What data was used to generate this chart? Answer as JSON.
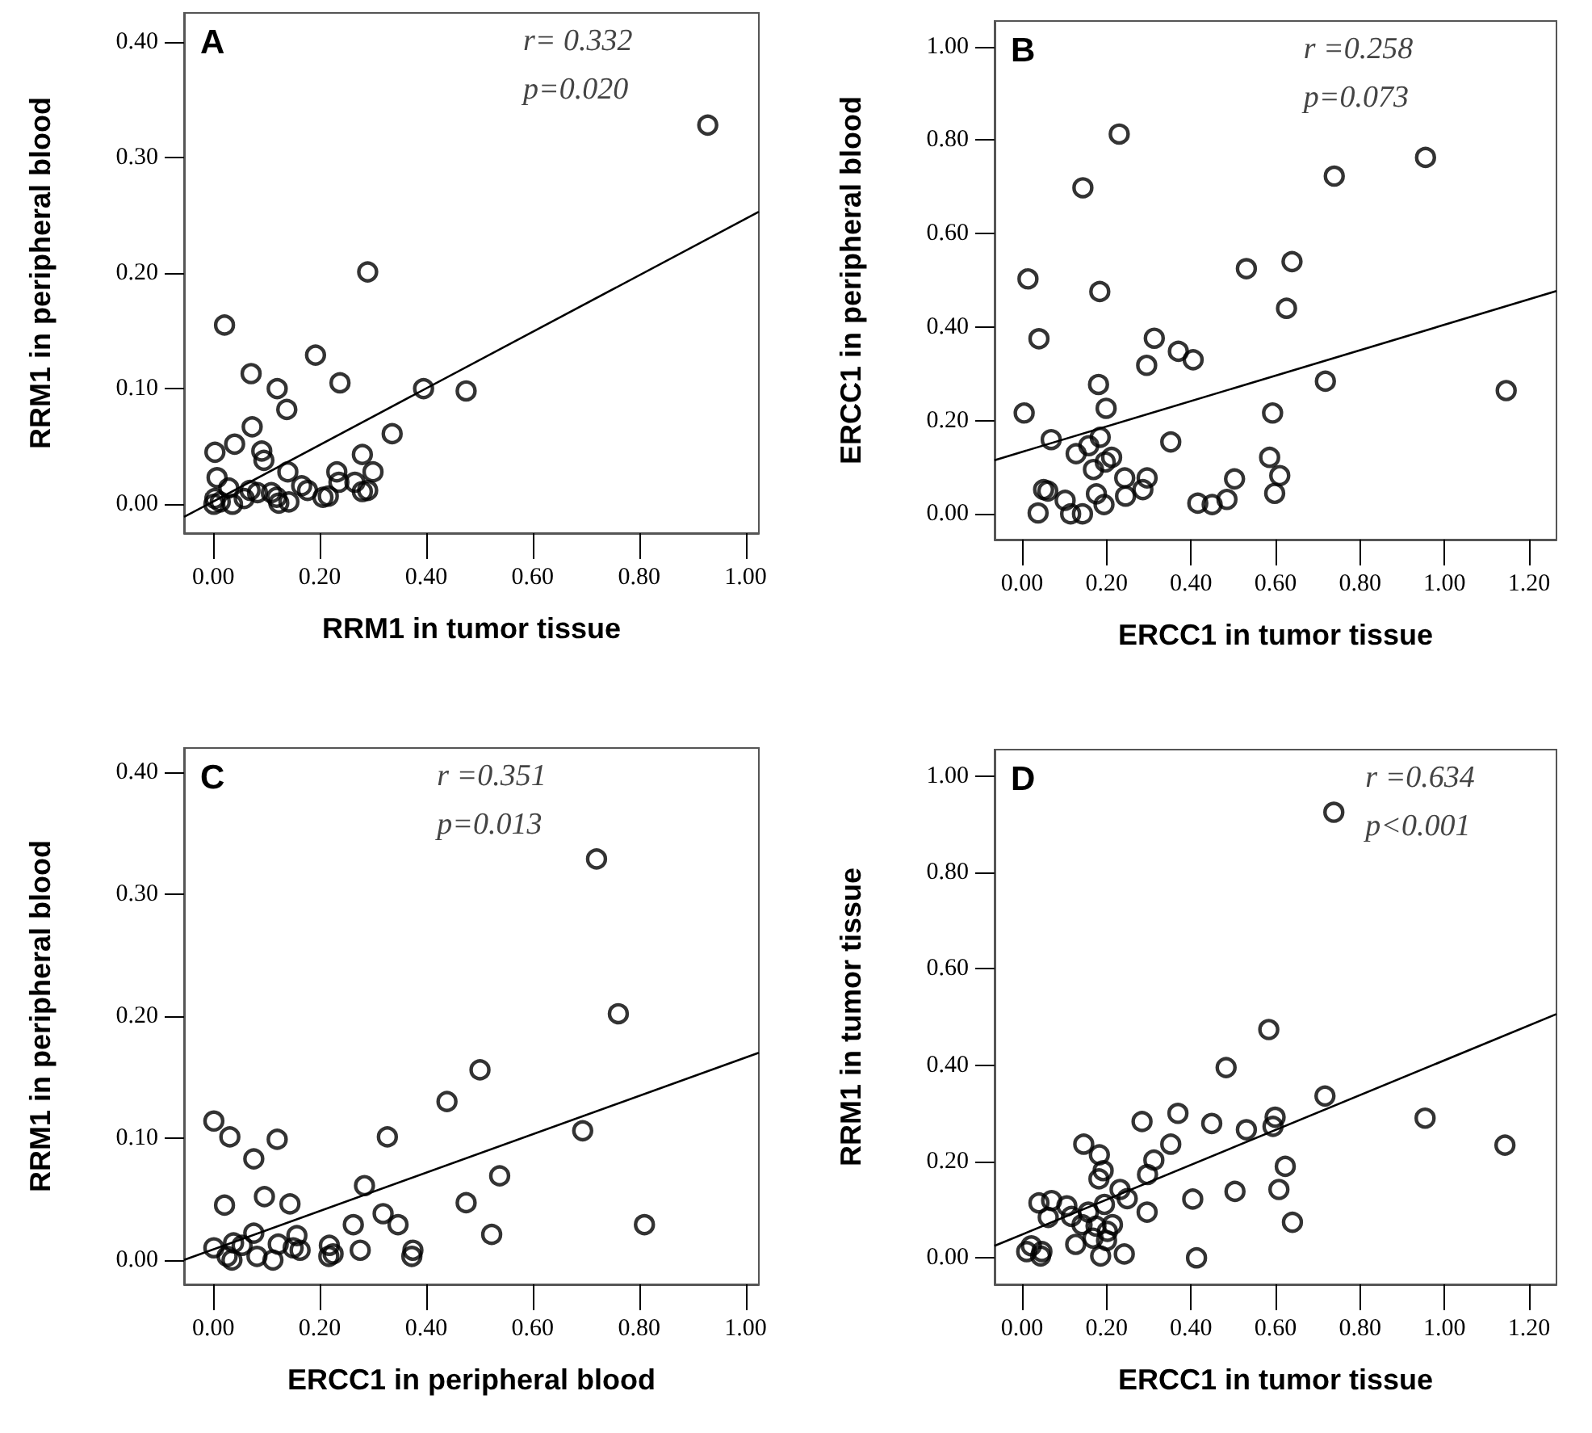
{
  "chart_data": [
    {
      "type": "scatter",
      "title": "A",
      "xlabel": "RRM1 in tumor tissue",
      "ylabel": "RRM1 in peripheral blood",
      "annotations": [
        "r= 0.332",
        "p=0.020"
      ],
      "marker": "circle",
      "grid": false,
      "xlim": [
        -0.055,
        1.025
      ],
      "ylim": [
        -0.025,
        0.425
      ],
      "xticks": [
        {
          "value": 0,
          "label": "0.00"
        },
        {
          "value": 0.2,
          "label": "0.20"
        },
        {
          "value": 0.4,
          "label": "0.40"
        },
        {
          "value": 0.6,
          "label": "0.60"
        },
        {
          "value": 0.8,
          "label": "0.80"
        },
        {
          "value": 1,
          "label": "1.00"
        }
      ],
      "yticks": [
        {
          "value": 0,
          "label": "0.00"
        },
        {
          "value": 0.1,
          "label": "0.10"
        },
        {
          "value": 0.2,
          "label": "0.20"
        },
        {
          "value": 0.3,
          "label": "0.30"
        },
        {
          "value": 0.4,
          "label": "0.40"
        }
      ],
      "series": [
        {
          "color": "#000000",
          "x": [
            0.929,
            0.29,
            0.021,
            0.192,
            0.071,
            0.12,
            0.238,
            0.138,
            0.395,
            0.475,
            0.073,
            0.336,
            0.04,
            0.003,
            0.091,
            0.095,
            0.28,
            0.14,
            0.232,
            0.3,
            0.007,
            0.236,
            0.266,
            0.166,
            0.177,
            0.28,
            0.29,
            0.029,
            0.069,
            0.083,
            0.109,
            0.119,
            0.206,
            0.216,
            0.003,
            0.013,
            0.036,
            0.058,
            0.123,
            0.142,
            0.001
          ],
          "values": [
            0.328,
            0.201,
            0.155,
            0.129,
            0.113,
            0.1,
            0.105,
            0.082,
            0.1,
            0.098,
            0.067,
            0.061,
            0.052,
            0.045,
            0.046,
            0.038,
            0.043,
            0.028,
            0.028,
            0.028,
            0.023,
            0.019,
            0.019,
            0.016,
            0.012,
            0.011,
            0.012,
            0.014,
            0.012,
            0.01,
            0.01,
            0.006,
            0.006,
            0.007,
            0.005,
            0.002,
            0,
            0.005,
            0.001,
            0.002,
            0
          ]
        },
        {
          "type": "line",
          "marker": "none",
          "color": "#000000",
          "x": [
            -0.055,
            1.025
          ],
          "values": [
            -0.011,
            0.253
          ]
        }
      ]
    },
    {
      "type": "scatter",
      "title": "B",
      "xlabel": "ERCC1 in tumor tissue",
      "ylabel": "ERCC1 in peripheral blood",
      "annotations": [
        "r =0.258",
        "p=0.073"
      ],
      "marker": "circle",
      "grid": false,
      "xlim": [
        -0.065,
        1.265
      ],
      "ylim": [
        -0.055,
        1.055
      ],
      "xticks": [
        {
          "value": 0,
          "label": "0.00"
        },
        {
          "value": 0.2,
          "label": "0.20"
        },
        {
          "value": 0.4,
          "label": "0.40"
        },
        {
          "value": 0.6,
          "label": "0.60"
        },
        {
          "value": 0.8,
          "label": "0.80"
        },
        {
          "value": 1,
          "label": "1.00"
        },
        {
          "value": 1.2,
          "label": "1.20"
        }
      ],
      "yticks": [
        {
          "value": 0,
          "label": "0.00"
        },
        {
          "value": 0.2,
          "label": "0.20"
        },
        {
          "value": 0.4,
          "label": "0.40"
        },
        {
          "value": 0.6,
          "label": "0.60"
        },
        {
          "value": 0.8,
          "label": "0.80"
        },
        {
          "value": 1,
          "label": "1.00"
        }
      ],
      "series": [
        {
          "color": "#000000",
          "x": [
            0.23,
            0.144,
            0.955,
            0.739,
            0.014,
            0.184,
            0.531,
            0.639,
            0.626,
            0.04,
            0.313,
            0.37,
            0.405,
            0.295,
            0.181,
            0.718,
            1.146,
            0.199,
            0.005,
            0.593,
            0.069,
            0.352,
            0.158,
            0.185,
            0.128,
            0.212,
            0.197,
            0.169,
            0.586,
            0.61,
            0.243,
            0.296,
            0.503,
            0.051,
            0.061,
            0.176,
            0.286,
            0.245,
            0.598,
            0.102,
            0.194,
            0.485,
            0.416,
            0.45,
            0.038,
            0.115,
            0.143
          ],
          "values": [
            0.813,
            0.698,
            0.763,
            0.723,
            0.503,
            0.476,
            0.525,
            0.54,
            0.44,
            0.375,
            0.376,
            0.348,
            0.33,
            0.318,
            0.277,
            0.284,
            0.264,
            0.226,
            0.216,
            0.216,
            0.159,
            0.154,
            0.146,
            0.164,
            0.129,
            0.121,
            0.111,
            0.095,
            0.121,
            0.082,
            0.077,
            0.077,
            0.075,
            0.052,
            0.049,
            0.043,
            0.052,
            0.038,
            0.044,
            0.029,
            0.02,
            0.031,
            0.023,
            0.02,
            0.002,
            0,
            0
          ]
        },
        {
          "type": "line",
          "marker": "none",
          "color": "#000000",
          "x": [
            -0.065,
            1.265
          ],
          "values": [
            0.115,
            0.477
          ]
        }
      ]
    },
    {
      "type": "scatter",
      "title": "C",
      "xlabel": "ERCC1 in peripheral blood",
      "ylabel": "RRM1 in peripheral blood",
      "annotations": [
        "r =0.351",
        "p=0.013"
      ],
      "marker": "circle",
      "grid": false,
      "xlim": [
        -0.055,
        1.025
      ],
      "ylim": [
        -0.02,
        0.42
      ],
      "xticks": [
        {
          "value": 0,
          "label": "0.00"
        },
        {
          "value": 0.2,
          "label": "0.20"
        },
        {
          "value": 0.4,
          "label": "0.40"
        },
        {
          "value": 0.6,
          "label": "0.60"
        },
        {
          "value": 0.8,
          "label": "0.80"
        },
        {
          "value": 1,
          "label": "1.00"
        }
      ],
      "yticks": [
        {
          "value": 0,
          "label": "0.00"
        },
        {
          "value": 0.1,
          "label": "0.10"
        },
        {
          "value": 0.2,
          "label": "0.20"
        },
        {
          "value": 0.3,
          "label": "0.30"
        },
        {
          "value": 0.4,
          "label": "0.40"
        }
      ],
      "series": [
        {
          "color": "#000000",
          "x": [
            0.72,
            0.761,
            0.501,
            0.439,
            0.694,
            0.001,
            0.031,
            0.12,
            0.327,
            0.076,
            0.284,
            0.538,
            0.096,
            0.144,
            0.021,
            0.475,
            0.319,
            0.347,
            0.263,
            0.81,
            0.523,
            0.076,
            0.001,
            0.038,
            0.054,
            0.122,
            0.157,
            0.163,
            0.15,
            0.218,
            0.225,
            0.276,
            0.375,
            0.373,
            0.082,
            0.112,
            0.026,
            0.035,
            0.217
          ],
          "values": [
            0.329,
            0.202,
            0.156,
            0.13,
            0.106,
            0.114,
            0.101,
            0.099,
            0.101,
            0.083,
            0.061,
            0.069,
            0.052,
            0.046,
            0.045,
            0.047,
            0.038,
            0.029,
            0.029,
            0.029,
            0.021,
            0.022,
            0.01,
            0.014,
            0.012,
            0.013,
            0.02,
            0.008,
            0.01,
            0.012,
            0.005,
            0.008,
            0.008,
            0.003,
            0.003,
            0,
            0.003,
            0,
            0.003
          ]
        },
        {
          "type": "line",
          "marker": "none",
          "color": "#000000",
          "x": [
            -0.055,
            1.025
          ],
          "values": [
            0,
            0.17
          ]
        }
      ]
    },
    {
      "type": "scatter",
      "title": "D",
      "xlabel": "ERCC1 in tumor tissue",
      "ylabel": "RRM1 in tumor tissue",
      "annotations": [
        "r =0.634",
        "p<0.001"
      ],
      "marker": "circle",
      "grid": false,
      "xlim": [
        -0.065,
        1.265
      ],
      "ylim": [
        -0.055,
        1.055
      ],
      "xticks": [
        {
          "value": 0,
          "label": "0.00"
        },
        {
          "value": 0.2,
          "label": "0.20"
        },
        {
          "value": 0.4,
          "label": "0.40"
        },
        {
          "value": 0.6,
          "label": "0.60"
        },
        {
          "value": 0.8,
          "label": "0.80"
        },
        {
          "value": 1,
          "label": "1.00"
        },
        {
          "value": 1.2,
          "label": "1.20"
        }
      ],
      "yticks": [
        {
          "value": 0,
          "label": "0.00"
        },
        {
          "value": 0.2,
          "label": "0.20"
        },
        {
          "value": 0.4,
          "label": "0.40"
        },
        {
          "value": 0.6,
          "label": "0.60"
        },
        {
          "value": 0.8,
          "label": "0.80"
        },
        {
          "value": 1,
          "label": "1.00"
        }
      ],
      "series": [
        {
          "color": "#000000",
          "x": [
            0.738,
            0.584,
            0.483,
            0.717,
            0.954,
            1.143,
            0.284,
            0.369,
            0.449,
            0.531,
            0.599,
            0.594,
            0.352,
            0.312,
            0.623,
            0.146,
            0.183,
            0.192,
            0.182,
            0.297,
            0.232,
            0.249,
            0.404,
            0.504,
            0.608,
            0.296,
            0.64,
            0.04,
            0.07,
            0.106,
            0.062,
            0.117,
            0.157,
            0.195,
            0.142,
            0.175,
            0.214,
            0.202,
            0.168,
            0.2,
            0.127,
            0.011,
            0.022,
            0.047,
            0.044,
            0.186,
            0.242,
            0.413
          ],
          "values": [
            0.925,
            0.474,
            0.395,
            0.336,
            0.29,
            0.234,
            0.283,
            0.3,
            0.279,
            0.266,
            0.292,
            0.273,
            0.236,
            0.203,
            0.19,
            0.236,
            0.214,
            0.181,
            0.164,
            0.173,
            0.142,
            0.123,
            0.122,
            0.138,
            0.142,
            0.095,
            0.074,
            0.114,
            0.119,
            0.108,
            0.084,
            0.086,
            0.095,
            0.111,
            0.069,
            0.066,
            0.069,
            0.055,
            0.041,
            0.036,
            0.028,
            0.013,
            0.025,
            0.013,
            0.004,
            0.004,
            0.008,
            0
          ]
        },
        {
          "type": "line",
          "marker": "none",
          "color": "#000000",
          "x": [
            -0.065,
            1.265
          ],
          "values": [
            0.025,
            0.506
          ]
        }
      ]
    }
  ]
}
